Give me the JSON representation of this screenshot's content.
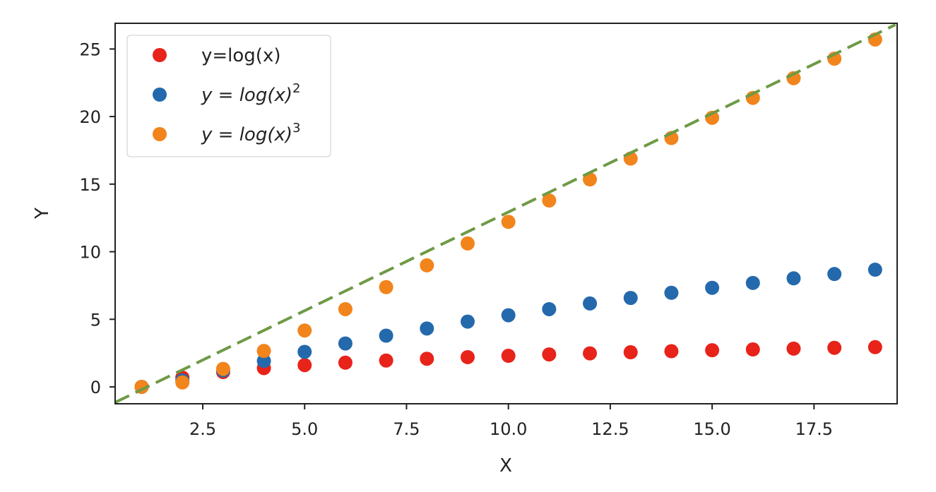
{
  "chart_data": {
    "type": "scatter",
    "title": "",
    "xlabel": "X",
    "ylabel": "Y",
    "xlim": [
      0.35,
      19.54
    ],
    "ylim": [
      -1.25,
      26.9
    ],
    "xticks": [
      2.5,
      5.0,
      7.5,
      10.0,
      12.5,
      15.0,
      17.5
    ],
    "xtick_labels": [
      "2.5",
      "5.0",
      "7.5",
      "10.0",
      "12.5",
      "15.0",
      "17.5"
    ],
    "yticks": [
      0,
      5,
      10,
      15,
      20,
      25
    ],
    "ytick_labels": [
      "0",
      "5",
      "10",
      "15",
      "20",
      "25"
    ],
    "grid": false,
    "legend_position": "top-left",
    "x": [
      1,
      2,
      3,
      4,
      5,
      6,
      7,
      8,
      9,
      10,
      11,
      12,
      13,
      14,
      15,
      16,
      17,
      18,
      19
    ],
    "series": [
      {
        "name": "y=log(x)",
        "label_base": "y=log(x)",
        "label_sup": "",
        "italic": false,
        "color": "#e8231a",
        "values": [
          0,
          0.69,
          1.1,
          1.39,
          1.61,
          1.79,
          1.95,
          2.08,
          2.2,
          2.3,
          2.4,
          2.48,
          2.56,
          2.64,
          2.71,
          2.77,
          2.83,
          2.89,
          2.94
        ]
      },
      {
        "name": "y = log(x)^2",
        "label_base": "y = log(x)",
        "label_sup": "2",
        "italic": true,
        "color": "#2469ac",
        "values": [
          0,
          0.48,
          1.21,
          1.92,
          2.59,
          3.21,
          3.79,
          4.32,
          4.83,
          5.3,
          5.75,
          6.17,
          6.58,
          6.96,
          7.33,
          7.69,
          8.03,
          8.35,
          8.67
        ]
      },
      {
        "name": "y = log(x)^3",
        "label_base": "y = log(x)",
        "label_sup": "3",
        "italic": true,
        "color": "#f2841c",
        "values": [
          0,
          0.33,
          1.33,
          2.66,
          4.17,
          5.75,
          7.38,
          8.99,
          10.61,
          12.21,
          13.79,
          15.35,
          16.89,
          18.41,
          19.91,
          21.38,
          22.84,
          24.28,
          25.7
        ]
      }
    ],
    "reference_line": {
      "style": "dashed",
      "color": "#6e9a45",
      "x": [
        0.35,
        19.5
      ],
      "y": [
        -1.15,
        26.8
      ]
    }
  }
}
